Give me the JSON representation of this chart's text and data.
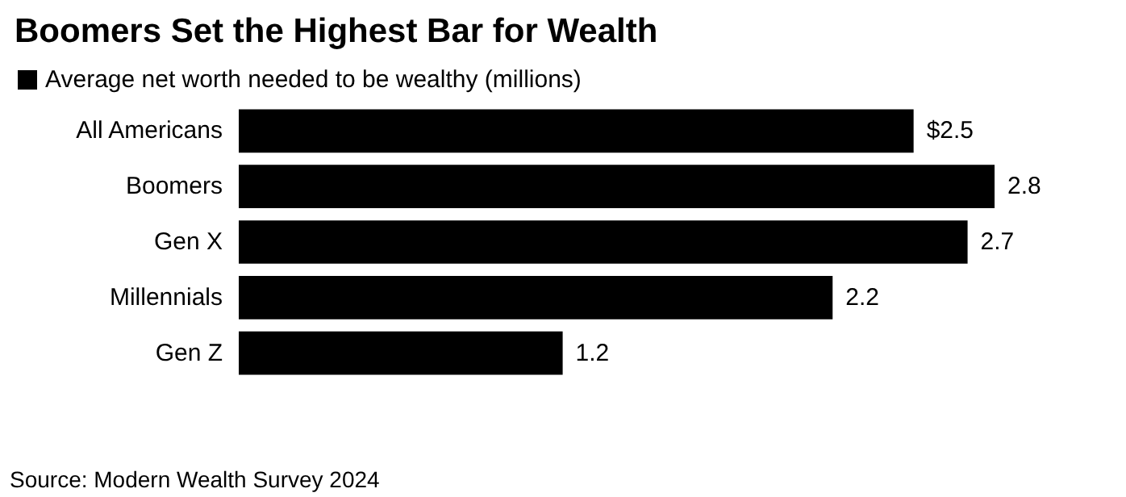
{
  "chart_data": {
    "type": "bar",
    "orientation": "horizontal",
    "title": "Boomers Set the Highest Bar for Wealth",
    "categories": [
      "All Americans",
      "Boomers",
      "Gen X",
      "Millennials",
      "Gen Z"
    ],
    "series": [
      {
        "name": "Average net worth needed to be wealthy (millions)",
        "color": "#000000",
        "values": [
          2.5,
          2.8,
          2.7,
          2.2,
          1.2
        ],
        "value_labels": [
          "$2.5",
          "2.8",
          "2.7",
          "2.2",
          "1.2"
        ]
      }
    ],
    "legend": "top left",
    "annotations": [
      "Source: Modern Wealth Survey 2024"
    ]
  }
}
